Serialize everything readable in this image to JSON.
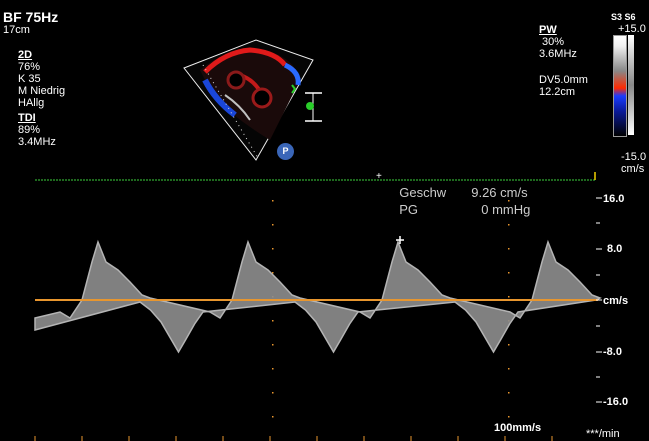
{
  "left_panel": {
    "title": "BF 75Hz",
    "depth": "17cm",
    "mode_2d_label": "2D",
    "gain": "76%",
    "k": "K 35",
    "m": "M Niedrig",
    "h": "HAllg",
    "tdi_label": "TDI",
    "tdi_gain": "89%",
    "tdi_freq": "3.4MHz"
  },
  "right_panel": {
    "probe": "S3 S6",
    "scale_top": "+15.0",
    "pw_label": "PW",
    "pw_gain": "30%",
    "pw_freq": "3.6MHz",
    "dv": "DV5.0mm",
    "depth": "12.2cm",
    "scale_bottom": "-15.0",
    "scale_unit": "cm/s"
  },
  "badge": {
    "label": "P"
  },
  "measurement": {
    "vel_label": "Geschw",
    "vel_value": "9.26 cm/s",
    "pg_label": "PG",
    "pg_value": "0 mmHg"
  },
  "axis": {
    "ticks": [
      "16.0",
      "8.0",
      "cm/s",
      "-8.0",
      "-16.0"
    ]
  },
  "footer": {
    "sweep": "100mm/s",
    "hr": "***/min"
  },
  "colors": {
    "baseline": "#e8962e",
    "ecg": "#3cd23c",
    "wave": "#b4b4b4"
  }
}
